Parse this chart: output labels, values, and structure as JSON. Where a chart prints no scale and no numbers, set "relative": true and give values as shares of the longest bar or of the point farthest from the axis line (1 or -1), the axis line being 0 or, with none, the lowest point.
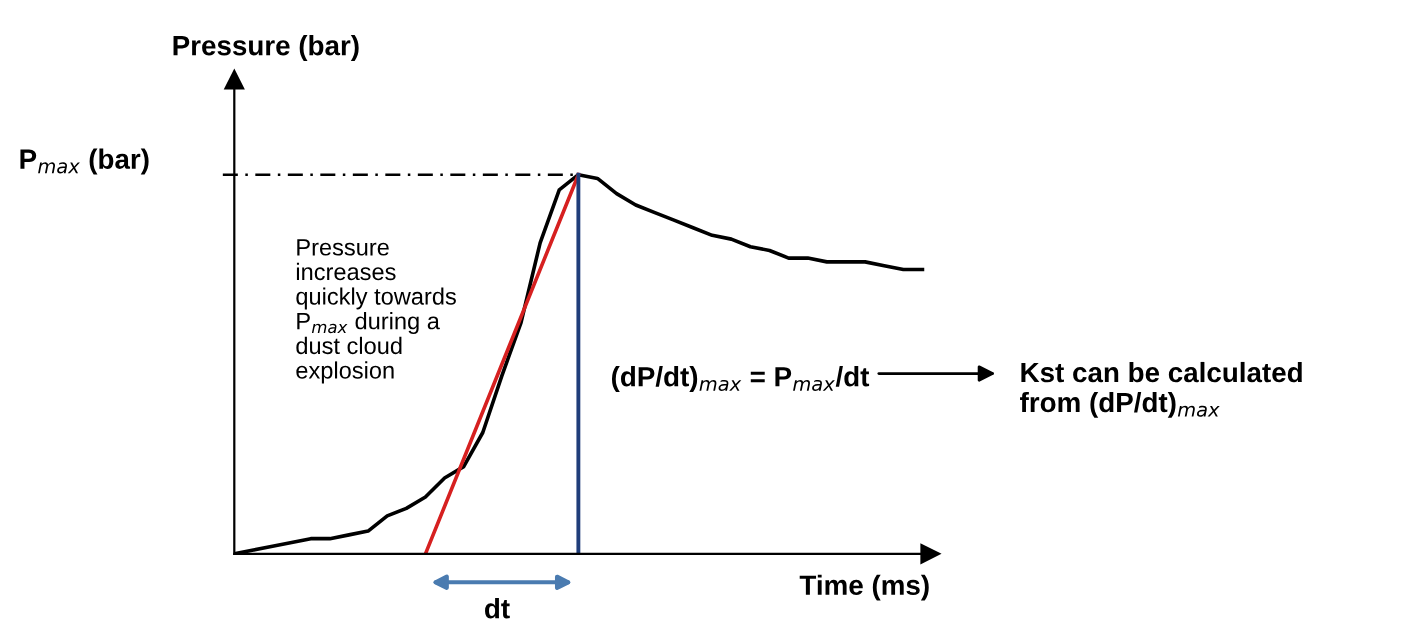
{
  "chart_data": {
    "type": "line",
    "relative": true,
    "xlabel": "Time (ms)",
    "ylabel": "Pressure (bar)",
    "categories": [
      null,
      null,
      null,
      null,
      null,
      null,
      null,
      null,
      null,
      null,
      null,
      null,
      null,
      null,
      null,
      null,
      null,
      null,
      null,
      null,
      null,
      null,
      null,
      null,
      null,
      null,
      null,
      null,
      null,
      null,
      null,
      null,
      null,
      null,
      null,
      null,
      null
    ],
    "series": [
      {
        "color": "#000000",
        "values": [
          0,
          0.01,
          0.02,
          0.03,
          0.04,
          0.04,
          0.05,
          0.06,
          0.1,
          0.12,
          0.15,
          0.2,
          0.23,
          0.32,
          0.47,
          0.61,
          0.82,
          0.96,
          1,
          0.99,
          0.95,
          0.92,
          0.9,
          0.88,
          0.86,
          0.84,
          0.83,
          0.81,
          0.8,
          0.78,
          0.78,
          0.77,
          0.77,
          0.77,
          0.76,
          0.75,
          0.75
        ]
      },
      {
        "color": "#d62020",
        "values": [
          null,
          null,
          null,
          null,
          null,
          null,
          null,
          null,
          null,
          null,
          0,
          null,
          null,
          null,
          null,
          null,
          null,
          null,
          1,
          null,
          null,
          null,
          null,
          null,
          null,
          null,
          null,
          null,
          null,
          null,
          null,
          null,
          null,
          null,
          null,
          null,
          null
        ]
      }
    ],
    "ref_lines": [
      {
        "axis": "x",
        "color": "#1f3d7a",
        "line_style": "solid"
      },
      {
        "axis": "y",
        "value": 1,
        "label": "P$_{max}$ (bar)",
        "color": "#000000",
        "line_style": "dashed"
      }
    ],
    "annotations": [
      "Pressure\nincreases\nquickly towards\nP$_{max}$ during a\ndust cloud\nexplosion",
      "dt",
      "(dP/dt)$_{max}$ = P$_{max}$/dt",
      "Kst can be calculated\nfrom (dP/dt)$_{max}$"
    ],
    "marker": "none",
    "line_style": "solid"
  }
}
